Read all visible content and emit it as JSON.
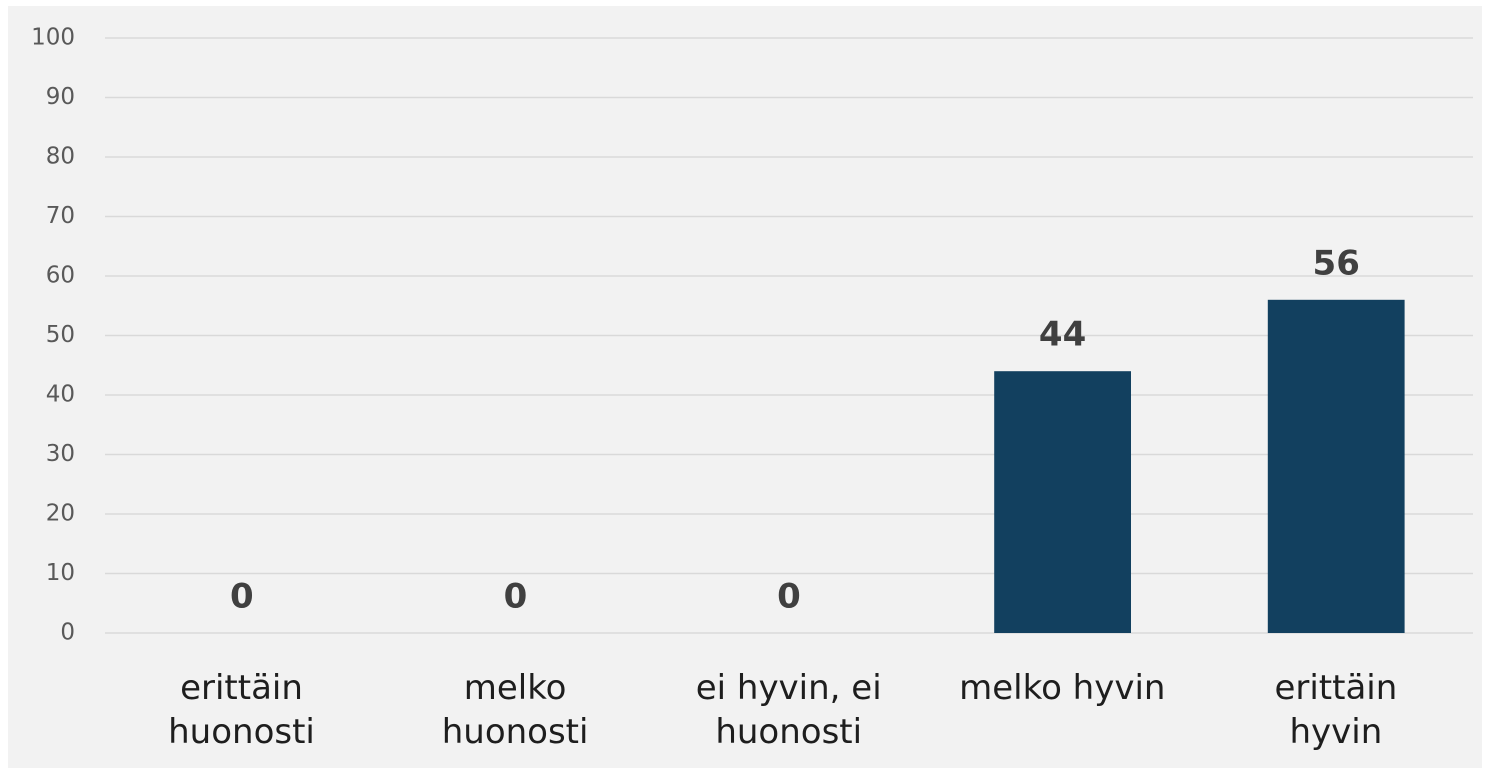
{
  "chart_data": {
    "type": "bar",
    "categories": [
      "erittäin\nhuonosti",
      "melko\nhuonosti",
      "ei hyvin, ei\nhuonosti",
      "melko hyvin",
      "erittäin\nhyvin"
    ],
    "values": [
      0,
      0,
      0,
      44,
      56
    ],
    "color": "#12405f",
    "ylim": [
      0,
      100
    ],
    "yticks": [
      0,
      10,
      20,
      30,
      40,
      50,
      60,
      70,
      80,
      90,
      100
    ],
    "grid": true
  }
}
